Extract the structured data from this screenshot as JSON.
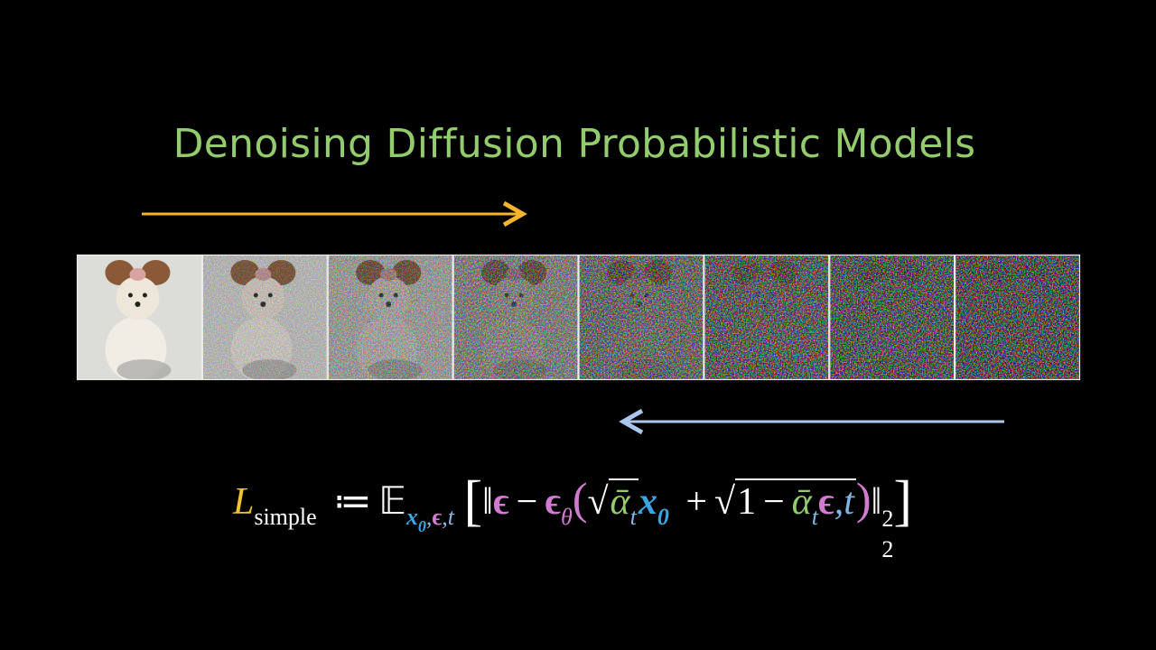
{
  "title": "Denoising Diffusion Probabilistic Models",
  "formula": {
    "tokens": [
      "L",
      "simple",
      "≔",
      "𝔼",
      "x",
      "0",
      ",",
      "ϵ",
      ",",
      "t",
      "[",
      "‖",
      "ϵ",
      "−",
      "ϵ",
      "θ",
      "(",
      "√",
      "ᾱ",
      "t",
      "x",
      "0",
      "+",
      "√",
      "1",
      "−",
      "ᾱ",
      "t",
      "ϵ",
      ",",
      "t",
      ")",
      "‖",
      "2",
      "2",
      "]"
    ]
  }
}
